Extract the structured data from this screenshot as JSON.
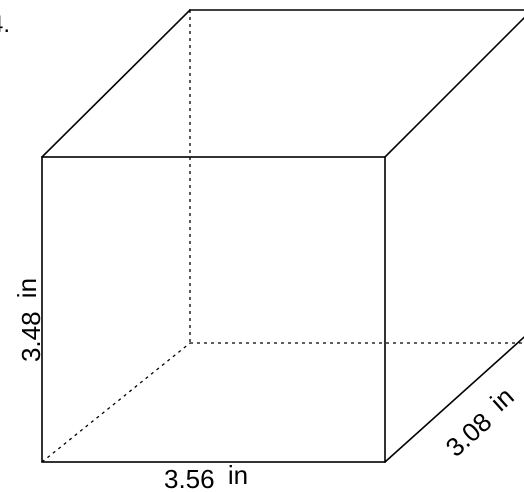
{
  "problem": {
    "number_fragment": "4."
  },
  "prism": {
    "height_label": {
      "value": "3.48",
      "unit": "in"
    },
    "width_label": {
      "value": "3.56",
      "unit": "in"
    },
    "depth_label": {
      "value": "3.08",
      "unit": "in"
    }
  }
}
